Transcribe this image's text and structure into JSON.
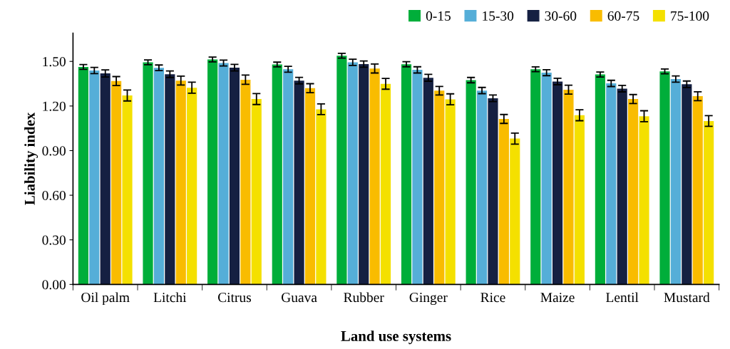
{
  "chart_data": {
    "type": "bar",
    "xlabel": "Land use systems",
    "ylabel": "Liability index",
    "categories": [
      "Oil palm",
      "Litchi",
      "Citrus",
      "Guava",
      "Rubber",
      "Ginger",
      "Rice",
      "Maize",
      "Lentil",
      "Mustard"
    ],
    "series": [
      {
        "name": "0-15",
        "color": "#00ae3a",
        "values": [
          1.463,
          1.494,
          1.513,
          1.479,
          1.538,
          1.481,
          1.374,
          1.447,
          1.412,
          1.433
        ],
        "errors": [
          0.016,
          0.016,
          0.016,
          0.016,
          0.016,
          0.017,
          0.018,
          0.016,
          0.017,
          0.016
        ]
      },
      {
        "name": "15-30",
        "color": "#55aed8",
        "values": [
          1.439,
          1.457,
          1.489,
          1.447,
          1.494,
          1.443,
          1.304,
          1.424,
          1.352,
          1.381
        ],
        "errors": [
          0.021,
          0.019,
          0.02,
          0.02,
          0.021,
          0.021,
          0.021,
          0.02,
          0.021,
          0.021
        ]
      },
      {
        "name": "30-60",
        "color": "#152042",
        "values": [
          1.419,
          1.414,
          1.458,
          1.371,
          1.482,
          1.39,
          1.252,
          1.365,
          1.317,
          1.346
        ],
        "errors": [
          0.024,
          0.022,
          0.022,
          0.022,
          0.021,
          0.023,
          0.022,
          0.022,
          0.022,
          0.022
        ]
      },
      {
        "name": "60-75",
        "color": "#f9bc00",
        "values": [
          1.368,
          1.371,
          1.377,
          1.32,
          1.452,
          1.303,
          1.113,
          1.31,
          1.247,
          1.266
        ],
        "errors": [
          0.03,
          0.03,
          0.031,
          0.03,
          0.03,
          0.029,
          0.03,
          0.03,
          0.03,
          0.03
        ]
      },
      {
        "name": "75-100",
        "color": "#f4e000",
        "values": [
          1.271,
          1.323,
          1.247,
          1.178,
          1.349,
          1.245,
          0.981,
          1.138,
          1.131,
          1.099
        ],
        "errors": [
          0.037,
          0.037,
          0.037,
          0.036,
          0.036,
          0.037,
          0.037,
          0.037,
          0.037,
          0.036
        ]
      }
    ],
    "ylim": [
      0,
      1.69
    ],
    "yticks": [
      {
        "value": 0,
        "label": "0.00"
      },
      {
        "value": 0.3,
        "label": "0.30"
      },
      {
        "value": 0.6,
        "label": "0.60"
      },
      {
        "value": 0.9,
        "label": "0.90"
      },
      {
        "value": 1.2,
        "label": "1.20"
      },
      {
        "value": 1.5,
        "label": "1.50"
      }
    ],
    "grid": false,
    "legend": "top right"
  }
}
